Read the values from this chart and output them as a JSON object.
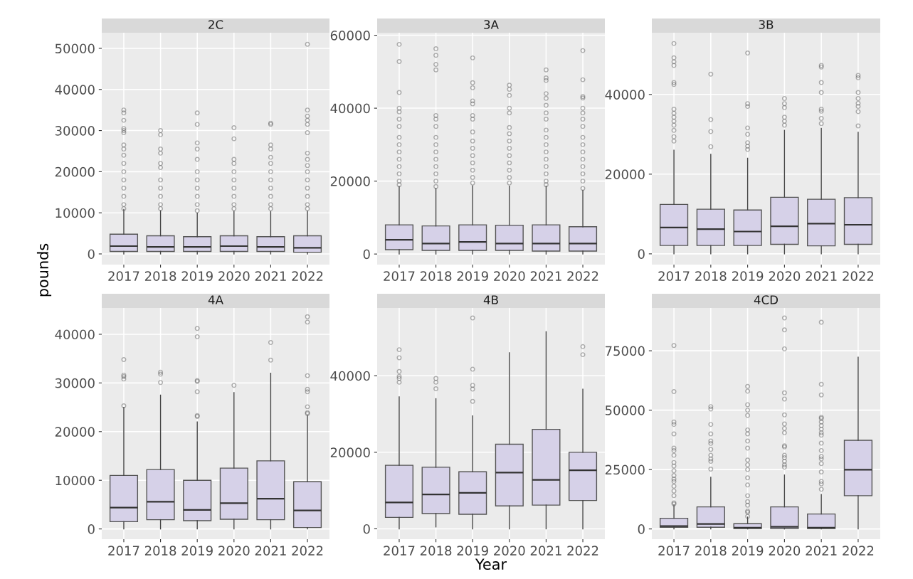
{
  "chart_data": [
    {
      "type": "box",
      "title": "2C",
      "ylabel": "pounds",
      "categories": [
        "2017",
        "2018",
        "2019",
        "2020",
        "2021",
        "2022"
      ],
      "ylim": [
        -2600,
        53800
      ],
      "yticks": [
        0,
        10000,
        20000,
        30000,
        40000,
        50000
      ],
      "grid": true,
      "marker": "circle",
      "series": [
        {
          "color": "#d6d1e8",
          "boxes": [
            {
              "low": 0,
              "q1": 600,
              "median": 1900,
              "q3": 4800,
              "high": 10800,
              "outliers": [
                35000,
                34300,
                32500,
                30500,
                30000,
                29500,
                26500,
                25500,
                24000,
                22000,
                20000,
                18000,
                16000,
                14000,
                12000,
                11000
              ]
            },
            {
              "low": 0,
              "q1": 600,
              "median": 1700,
              "q3": 4400,
              "high": 10500,
              "outliers": [
                30000,
                29000,
                25500,
                24500,
                22000,
                21000,
                18000,
                16000,
                14000,
                12000,
                11000
              ]
            },
            {
              "low": 0,
              "q1": 600,
              "median": 1700,
              "q3": 4200,
              "high": 9900,
              "outliers": [
                34300,
                31500,
                27000,
                25500,
                23000,
                20000,
                18000,
                16000,
                14000,
                12000,
                10500
              ]
            },
            {
              "low": 0,
              "q1": 600,
              "median": 1900,
              "q3": 4400,
              "high": 10400,
              "outliers": [
                30700,
                28000,
                23000,
                22000,
                20000,
                18000,
                16000,
                14000,
                12000,
                11000
              ]
            },
            {
              "low": 0,
              "q1": 600,
              "median": 1700,
              "q3": 4200,
              "high": 10300,
              "outliers": [
                31800,
                31500,
                26500,
                25500,
                23500,
                22000,
                20000,
                18000,
                16000,
                14000,
                12000,
                11000
              ]
            },
            {
              "low": 0,
              "q1": 400,
              "median": 1500,
              "q3": 4400,
              "high": 10400,
              "outliers": [
                51000,
                35000,
                33500,
                32500,
                31500,
                29500,
                24500,
                23000,
                21500,
                20000,
                18000,
                16000,
                14000,
                12000,
                11000
              ]
            }
          ]
        }
      ]
    },
    {
      "type": "box",
      "title": "3A",
      "categories": [
        "2017",
        "2018",
        "2019",
        "2020",
        "2021",
        "2022"
      ],
      "ylim": [
        -2900,
        60700
      ],
      "yticks": [
        0,
        20000,
        40000,
        60000
      ],
      "grid": true,
      "marker": "circle",
      "series": [
        {
          "color": "#d6d1e8",
          "boxes": [
            {
              "low": 0,
              "q1": 1200,
              "median": 3900,
              "q3": 8000,
              "high": 18500,
              "outliers": [
                57500,
                52800,
                44300,
                40000,
                39000,
                37000,
                35000,
                32000,
                30000,
                28000,
                26000,
                24000,
                22000,
                20000,
                19000
              ]
            },
            {
              "low": 0,
              "q1": 1000,
              "median": 2900,
              "q3": 7700,
              "high": 18000,
              "outliers": [
                56300,
                54500,
                52000,
                50500,
                38000,
                37000,
                35000,
                32000,
                30000,
                28000,
                26000,
                24000,
                22000,
                20000,
                18500
              ]
            },
            {
              "low": 0,
              "q1": 1000,
              "median": 3300,
              "q3": 8000,
              "high": 18700,
              "outliers": [
                53800,
                47000,
                45600,
                42000,
                41200,
                38000,
                37000,
                33500,
                31000,
                29000,
                27000,
                25000,
                23000,
                21000,
                19500
              ]
            },
            {
              "low": 0,
              "q1": 1000,
              "median": 2900,
              "q3": 7900,
              "high": 18600,
              "outliers": [
                46300,
                45200,
                43500,
                40000,
                38700,
                34700,
                33000,
                31000,
                29000,
                27000,
                25000,
                23000,
                21000,
                19500
              ]
            },
            {
              "low": 0,
              "q1": 800,
              "median": 2900,
              "q3": 8000,
              "high": 18600,
              "outliers": [
                50500,
                48300,
                47600,
                44000,
                42700,
                40800,
                38700,
                37000,
                34000,
                32000,
                30000,
                28000,
                26000,
                24000,
                22000,
                20000,
                19000
              ]
            },
            {
              "low": 0,
              "q1": 800,
              "median": 2900,
              "q3": 7500,
              "high": 17500,
              "outliers": [
                55800,
                47800,
                43200,
                42800,
                40000,
                38700,
                37000,
                35000,
                32000,
                30000,
                28000,
                26000,
                24000,
                22000,
                20000,
                18000
              ]
            }
          ]
        }
      ]
    },
    {
      "type": "box",
      "title": "3B",
      "categories": [
        "2017",
        "2018",
        "2019",
        "2020",
        "2021",
        "2022"
      ],
      "ylim": [
        -2700,
        55500
      ],
      "yticks": [
        0,
        20000,
        40000
      ],
      "grid": true,
      "marker": "circle",
      "series": [
        {
          "color": "#d6d1e8",
          "boxes": [
            {
              "low": 0,
              "q1": 2100,
              "median": 6600,
              "q3": 12400,
              "high": 26000,
              "outliers": [
                52800,
                49200,
                48200,
                47300,
                43000,
                42500,
                36300,
                35300,
                34300,
                33300,
                32300,
                31000,
                29400,
                28300
              ]
            },
            {
              "low": 0,
              "q1": 2100,
              "median": 6200,
              "q3": 11200,
              "high": 25000,
              "outliers": [
                45100,
                33700,
                30700,
                26900
              ]
            },
            {
              "low": 0,
              "q1": 2100,
              "median": 5600,
              "q3": 11000,
              "high": 24000,
              "outliers": [
                50400,
                37700,
                37000,
                31600,
                30000,
                27900,
                27000,
                26200
              ]
            },
            {
              "low": 0,
              "q1": 2400,
              "median": 6900,
              "q3": 14200,
              "high": 31000,
              "outliers": [
                39000,
                37700,
                36700,
                34300,
                33300,
                32300
              ]
            },
            {
              "low": 0,
              "q1": 2000,
              "median": 7600,
              "q3": 13700,
              "high": 31500,
              "outliers": [
                47300,
                46900,
                43000,
                40500,
                36300,
                35800,
                34000,
                32700
              ]
            },
            {
              "low": 0,
              "q1": 2400,
              "median": 7300,
              "q3": 14100,
              "high": 30500,
              "outliers": [
                44800,
                44200,
                40500,
                39000,
                37800,
                37000,
                35700,
                32100
              ]
            }
          ]
        }
      ]
    },
    {
      "type": "box",
      "title": "4A",
      "categories": [
        "2017",
        "2018",
        "2019",
        "2020",
        "2021",
        "2022"
      ],
      "ylim": [
        -2100,
        45400
      ],
      "yticks": [
        0,
        10000,
        20000,
        30000,
        40000
      ],
      "grid": true,
      "marker": "circle",
      "series": [
        {
          "color": "#d6d1e8",
          "boxes": [
            {
              "low": 0,
              "q1": 1500,
              "median": 4400,
              "q3": 11000,
              "high": 25000,
              "outliers": [
                34800,
                31600,
                31300,
                30800,
                25300
              ]
            },
            {
              "low": 0,
              "q1": 1900,
              "median": 5600,
              "q3": 12200,
              "high": 27500,
              "outliers": [
                32200,
                31800,
                30100
              ]
            },
            {
              "low": 0,
              "q1": 1700,
              "median": 3900,
              "q3": 10000,
              "high": 22000,
              "outliers": [
                41200,
                39500,
                30500,
                30300,
                28200,
                23300,
                23100
              ]
            },
            {
              "low": 0,
              "q1": 2000,
              "median": 5300,
              "q3": 12500,
              "high": 28000,
              "outliers": [
                29500
              ]
            },
            {
              "low": 0,
              "q1": 1900,
              "median": 6200,
              "q3": 14000,
              "high": 32000,
              "outliers": [
                38300,
                34700
              ]
            },
            {
              "low": 0,
              "q1": 300,
              "median": 3800,
              "q3": 9700,
              "high": 23300,
              "outliers": [
                43600,
                42500,
                31500,
                28700,
                28200,
                25100,
                23900,
                23700
              ]
            }
          ]
        }
      ]
    },
    {
      "type": "box",
      "title": "4B",
      "xlabel": "Year",
      "categories": [
        "2017",
        "2018",
        "2019",
        "2020",
        "2021",
        "2022"
      ],
      "ylim": [
        -2700,
        57700
      ],
      "yticks": [
        0,
        20000,
        40000
      ],
      "grid": true,
      "marker": "circle",
      "series": [
        {
          "color": "#d6d1e8",
          "boxes": [
            {
              "low": 0,
              "q1": 3000,
              "median": 6900,
              "q3": 16600,
              "high": 34500,
              "outliers": [
                46800,
                44700,
                41100,
                39800,
                39300,
                38300
              ]
            },
            {
              "low": 500,
              "q1": 4000,
              "median": 9000,
              "q3": 16100,
              "high": 34000,
              "outliers": [
                39300,
                38300,
                36600
              ]
            },
            {
              "low": 0,
              "q1": 3800,
              "median": 9400,
              "q3": 14900,
              "high": 29500,
              "outliers": [
                55100,
                41700,
                37500,
                36500,
                33300
              ]
            },
            {
              "low": 0,
              "q1": 6000,
              "median": 14700,
              "q3": 22100,
              "high": 46000
            },
            {
              "low": 0,
              "q1": 6200,
              "median": 12800,
              "q3": 26000,
              "high": 51500
            },
            {
              "low": 0,
              "q1": 7400,
              "median": 15300,
              "q3": 20000,
              "high": 36500,
              "outliers": [
                47600,
                45500
              ]
            }
          ]
        }
      ]
    },
    {
      "type": "box",
      "title": "4CD",
      "categories": [
        "2017",
        "2018",
        "2019",
        "2020",
        "2021",
        "2022"
      ],
      "ylim": [
        -4300,
        93000
      ],
      "yticks": [
        0,
        25000,
        50000,
        75000
      ],
      "grid": true,
      "marker": "circle",
      "series": [
        {
          "color": "#d6d1e8",
          "boxes": [
            {
              "low": 0,
              "q1": 700,
              "median": 1200,
              "q3": 4500,
              "high": 10000,
              "outliers": [
                77200,
                57800,
                45000,
                44000,
                40000,
                34000,
                33000,
                31000,
                28000,
                26500,
                24500,
                22500,
                21000,
                20000,
                18000,
                16000,
                14000,
                11000,
                10500
              ]
            },
            {
              "low": 0,
              "q1": 700,
              "median": 2100,
              "q3": 9300,
              "high": 21800,
              "outliers": [
                51500,
                50500,
                44000,
                40000,
                37000,
                36000,
                33500,
                31000,
                29500,
                28500,
                25200
              ]
            },
            {
              "low": 0,
              "q1": 200,
              "median": 500,
              "q3": 2200,
              "high": 5000,
              "outliers": [
                60000,
                58000,
                52300,
                50000,
                47800,
                41700,
                40000,
                37000,
                34000,
                29000,
                27000,
                25000,
                21500,
                18500,
                14000,
                11500,
                10000,
                7500,
                7000,
                5300
              ]
            },
            {
              "low": 0,
              "q1": 200,
              "median": 900,
              "q3": 9300,
              "high": 22700,
              "outliers": [
                88800,
                83800,
                75800,
                57300,
                54700,
                48000,
                44200,
                42300,
                40500,
                35000,
                34500,
                31000,
                30000,
                28500,
                27000,
                26000
              ]
            },
            {
              "low": 0,
              "q1": 200,
              "median": 500,
              "q3": 6300,
              "high": 14500,
              "outliers": [
                87000,
                60900,
                56400,
                47000,
                46500,
                45000,
                43500,
                42000,
                40500,
                39500,
                36100,
                33000,
                30500,
                29500,
                27500,
                24000,
                20000,
                19000,
                16700
              ]
            },
            {
              "low": 0,
              "q1": 14000,
              "median": 24900,
              "q3": 37300,
              "high": 72300
            }
          ]
        }
      ]
    }
  ]
}
